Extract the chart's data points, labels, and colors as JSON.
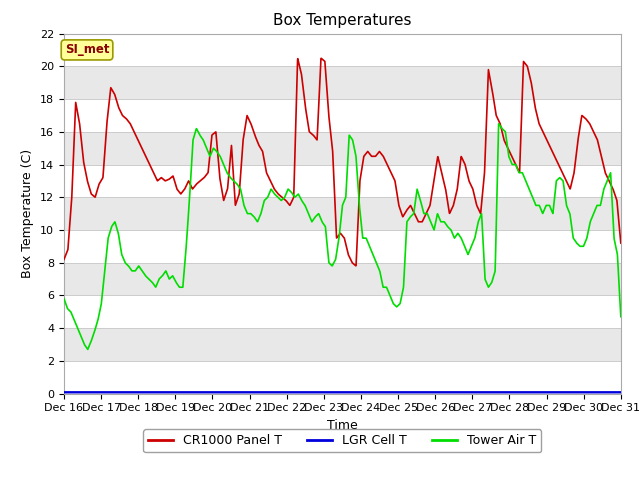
{
  "title": "Box Temperatures",
  "xlabel": "Time",
  "ylabel": "Box Temperature (C)",
  "xlim": [
    0,
    360
  ],
  "ylim": [
    0,
    22
  ],
  "yticks": [
    0,
    2,
    4,
    6,
    8,
    10,
    12,
    14,
    16,
    18,
    20,
    22
  ],
  "xtick_labels": [
    "Dec 16",
    "Dec 17",
    "Dec 18",
    "Dec 19",
    "Dec 20",
    "Dec 21",
    "Dec 22",
    "Dec 23",
    "Dec 24",
    "Dec 25",
    "Dec 26",
    "Dec 27",
    "Dec 28",
    "Dec 29",
    "Dec 30",
    "Dec 31"
  ],
  "xtick_positions": [
    0,
    24,
    48,
    72,
    96,
    120,
    144,
    168,
    192,
    216,
    240,
    264,
    288,
    312,
    336,
    360
  ],
  "annotation_text": "SI_met",
  "line1_color": "#cc0000",
  "line2_color": "#0000dd",
  "line3_color": "#00dd00",
  "line1_label": "CR1000 Panel T",
  "line2_label": "LGR Cell T",
  "line3_label": "Tower Air T",
  "line_width": 1.2,
  "title_fontsize": 11,
  "label_fontsize": 9,
  "tick_fontsize": 8,
  "legend_fontsize": 9,
  "band_colors": [
    "#ffffff",
    "#e8e8e8"
  ],
  "grid_line_color": "#cccccc",
  "panel1_red": [
    8.2,
    8.8,
    12.0,
    17.8,
    16.5,
    14.2,
    13.0,
    12.2,
    12.0,
    12.8,
    13.2,
    16.5,
    18.7,
    18.3,
    17.5,
    17.0,
    16.8,
    16.5,
    16.0,
    15.5,
    15.0,
    14.5,
    14.0,
    13.5,
    13.0,
    13.2,
    13.0,
    13.1,
    13.3,
    12.5,
    12.2,
    12.5,
    13.0,
    12.5,
    12.8,
    13.0,
    13.2,
    13.5,
    15.8,
    16.0,
    13.2,
    11.8,
    12.5,
    15.2,
    11.5,
    12.2,
    15.5,
    17.0,
    16.5,
    15.8,
    15.2,
    14.8,
    13.5,
    13.0,
    12.5,
    12.2,
    12.0,
    11.8,
    11.5,
    12.0,
    20.5,
    19.5,
    17.5,
    16.0,
    15.8,
    15.5,
    20.5,
    20.3,
    17.0,
    14.8,
    9.5,
    9.8,
    9.5,
    8.5,
    8.0,
    7.8,
    13.0,
    14.5,
    14.8,
    14.5,
    14.5,
    14.8,
    14.5,
    14.0,
    13.5,
    13.0,
    11.5,
    10.8,
    11.2,
    11.5,
    11.0,
    10.5,
    10.5,
    11.0,
    11.5,
    13.0,
    14.5,
    13.5,
    12.5,
    11.0,
    11.5,
    12.5,
    14.5,
    14.0,
    13.0,
    12.5,
    11.5,
    11.0,
    13.5,
    19.8,
    18.5,
    17.0,
    16.5,
    15.5,
    15.0,
    14.5,
    14.0,
    13.5,
    20.3,
    20.0,
    19.0,
    17.5,
    16.5,
    16.0,
    15.5,
    15.0,
    14.5,
    14.0,
    13.5,
    13.0,
    12.5,
    13.5,
    15.5,
    17.0,
    16.8,
    16.5,
    16.0,
    15.5,
    14.5,
    13.5,
    13.0,
    12.5,
    11.8,
    9.2
  ],
  "panel3_green": [
    5.8,
    5.2,
    5.0,
    4.5,
    4.0,
    3.5,
    3.0,
    2.7,
    3.2,
    3.8,
    4.5,
    5.5,
    7.5,
    9.5,
    10.2,
    10.5,
    9.8,
    8.5,
    8.0,
    7.8,
    7.5,
    7.5,
    7.8,
    7.5,
    7.2,
    7.0,
    6.8,
    6.5,
    7.0,
    7.2,
    7.5,
    7.0,
    7.2,
    6.8,
    6.5,
    6.5,
    9.0,
    12.0,
    15.5,
    16.2,
    15.8,
    15.5,
    15.0,
    14.5,
    15.0,
    14.8,
    14.5,
    14.0,
    13.5,
    13.2,
    13.0,
    12.8,
    12.5,
    11.5,
    11.0,
    11.0,
    10.8,
    10.5,
    11.0,
    11.8,
    12.0,
    12.5,
    12.2,
    12.0,
    11.8,
    12.0,
    12.5,
    12.3,
    12.0,
    12.2,
    11.8,
    11.5,
    11.0,
    10.5,
    10.8,
    11.0,
    10.5,
    10.2,
    8.0,
    7.8,
    8.2,
    9.5,
    11.5,
    12.0,
    15.8,
    15.5,
    14.5,
    11.5,
    9.5,
    9.5,
    9.0,
    8.5,
    8.0,
    7.5,
    6.5,
    6.5,
    6.0,
    5.5,
    5.3,
    5.5,
    6.5,
    10.5,
    10.8,
    11.0,
    12.5,
    11.8,
    11.0,
    11.0,
    10.5,
    10.0,
    11.0,
    10.5,
    10.5,
    10.2,
    10.0,
    9.5,
    9.8,
    9.5,
    9.0,
    8.5,
    9.0,
    9.5,
    10.5,
    11.0,
    7.0,
    6.5,
    6.8,
    7.5,
    16.5,
    16.2,
    16.0,
    14.5,
    14.0,
    14.0,
    13.5,
    13.5,
    13.0,
    12.5,
    12.0,
    11.5,
    11.5,
    11.0,
    11.5,
    11.5,
    11.0,
    13.0,
    13.2,
    13.0,
    11.5,
    11.0,
    9.5,
    9.2,
    9.0,
    9.0,
    9.5,
    10.5,
    11.0,
    11.5,
    11.5,
    12.5,
    13.0,
    13.5,
    9.5,
    8.5,
    4.7
  ]
}
